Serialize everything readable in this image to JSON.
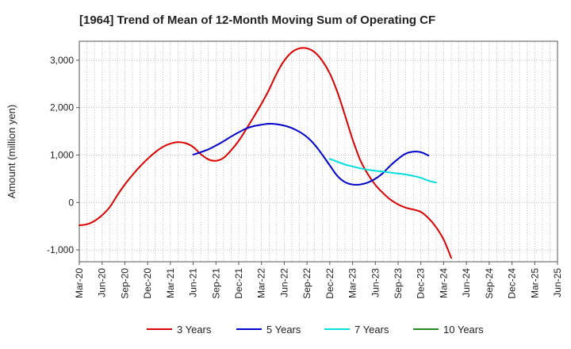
{
  "chart_data": {
    "type": "line",
    "title": "[1964]  Trend of Mean of 12-Month Moving Sum of Operating CF",
    "ylabel": "Amount (million yen)",
    "xlabel": "",
    "ylim": [
      -1250,
      3400
    ],
    "yticks": [
      -1000,
      0,
      1000,
      2000,
      3000
    ],
    "ytick_labels": [
      "-1,000",
      "0",
      "1,000",
      "2,000",
      "3,000"
    ],
    "x_ticks": [
      "Mar-20",
      "Jun-20",
      "Sep-20",
      "Dec-20",
      "Mar-21",
      "Jun-21",
      "Sep-21",
      "Dec-21",
      "Mar-22",
      "Jun-22",
      "Sep-22",
      "Dec-22",
      "Mar-23",
      "Jun-23",
      "Sep-23",
      "Dec-23",
      "Mar-24",
      "Jun-24",
      "Sep-24",
      "Dec-24",
      "Mar-25",
      "Jun-25"
    ],
    "grid": true,
    "series": [
      {
        "name": "3 Years",
        "color": "#dd0000",
        "points": [
          [
            0,
            -480
          ],
          [
            1,
            -460
          ],
          [
            2,
            -390
          ],
          [
            3,
            -270
          ],
          [
            4,
            -100
          ],
          [
            5,
            150
          ],
          [
            6,
            380
          ],
          [
            7,
            580
          ],
          [
            8,
            760
          ],
          [
            9,
            920
          ],
          [
            10,
            1060
          ],
          [
            11,
            1170
          ],
          [
            12,
            1240
          ],
          [
            13,
            1270
          ],
          [
            14,
            1250
          ],
          [
            15,
            1170
          ],
          [
            16,
            1020
          ],
          [
            17,
            910
          ],
          [
            18,
            880
          ],
          [
            19,
            940
          ],
          [
            20,
            1100
          ],
          [
            21,
            1300
          ],
          [
            22,
            1550
          ],
          [
            23,
            1810
          ],
          [
            24,
            2080
          ],
          [
            25,
            2380
          ],
          [
            26,
            2720
          ],
          [
            27,
            2990
          ],
          [
            28,
            3170
          ],
          [
            29,
            3250
          ],
          [
            30,
            3250
          ],
          [
            31,
            3170
          ],
          [
            32,
            2990
          ],
          [
            33,
            2720
          ],
          [
            34,
            2330
          ],
          [
            35,
            1840
          ],
          [
            36,
            1330
          ],
          [
            37,
            900
          ],
          [
            38,
            600
          ],
          [
            39,
            370
          ],
          [
            40,
            200
          ],
          [
            41,
            60
          ],
          [
            42,
            -40
          ],
          [
            43,
            -110
          ],
          [
            44,
            -150
          ],
          [
            45,
            -200
          ],
          [
            46,
            -330
          ],
          [
            47,
            -520
          ],
          [
            48,
            -780
          ],
          [
            49,
            -1170
          ]
        ]
      },
      {
        "name": "5 Years",
        "color": "#0000cc",
        "points": [
          [
            15,
            1010
          ],
          [
            16,
            1060
          ],
          [
            17,
            1120
          ],
          [
            18,
            1200
          ],
          [
            19,
            1290
          ],
          [
            20,
            1390
          ],
          [
            21,
            1480
          ],
          [
            22,
            1560
          ],
          [
            23,
            1610
          ],
          [
            24,
            1640
          ],
          [
            25,
            1660
          ],
          [
            26,
            1650
          ],
          [
            27,
            1620
          ],
          [
            28,
            1570
          ],
          [
            29,
            1490
          ],
          [
            30,
            1380
          ],
          [
            31,
            1220
          ],
          [
            32,
            1010
          ],
          [
            33,
            780
          ],
          [
            34,
            560
          ],
          [
            35,
            430
          ],
          [
            36,
            380
          ],
          [
            37,
            380
          ],
          [
            38,
            420
          ],
          [
            39,
            500
          ],
          [
            40,
            620
          ],
          [
            41,
            780
          ],
          [
            42,
            920
          ],
          [
            43,
            1030
          ],
          [
            44,
            1070
          ],
          [
            45,
            1060
          ],
          [
            46,
            990
          ]
        ]
      },
      {
        "name": "7 Years",
        "color": "#00dddd",
        "points": [
          [
            33,
            920
          ],
          [
            34,
            860
          ],
          [
            35,
            800
          ],
          [
            36,
            760
          ],
          [
            37,
            720
          ],
          [
            38,
            690
          ],
          [
            39,
            670
          ],
          [
            40,
            650
          ],
          [
            41,
            630
          ],
          [
            42,
            610
          ],
          [
            43,
            590
          ],
          [
            44,
            560
          ],
          [
            45,
            520
          ],
          [
            46,
            460
          ],
          [
            47,
            420
          ]
        ]
      },
      {
        "name": "10 Years",
        "color": "#228822",
        "points": []
      }
    ],
    "legend_position": "bottom"
  }
}
